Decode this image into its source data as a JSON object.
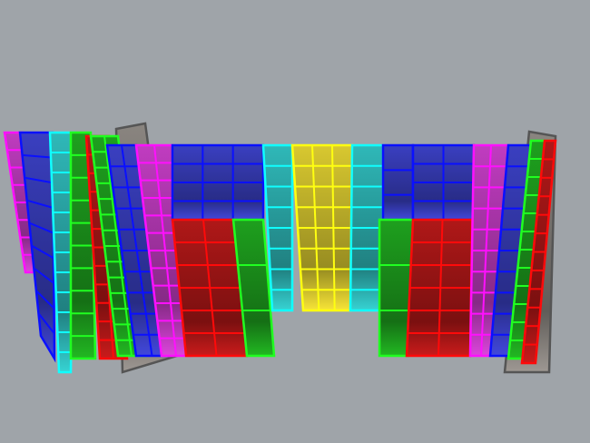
{
  "viewport": {
    "background": "#9fa4a9"
  },
  "palette": {
    "blue": {
      "fill": "#3a3fc0",
      "edge": "#0a10ff"
    },
    "magenta": {
      "fill": "#c03cc0",
      "edge": "#ff10ff"
    },
    "red": {
      "fill": "#b01818",
      "edge": "#ff0a0a"
    },
    "green": {
      "fill": "#1ea01e",
      "edge": "#20ff20"
    },
    "cyan": {
      "fill": "#2fb8b8",
      "edge": "#10ffff"
    },
    "yellow": {
      "fill": "#d8c830",
      "edge": "#ffff10"
    },
    "grey": {
      "fill": "#8a8580",
      "edge": "#555"
    }
  }
}
